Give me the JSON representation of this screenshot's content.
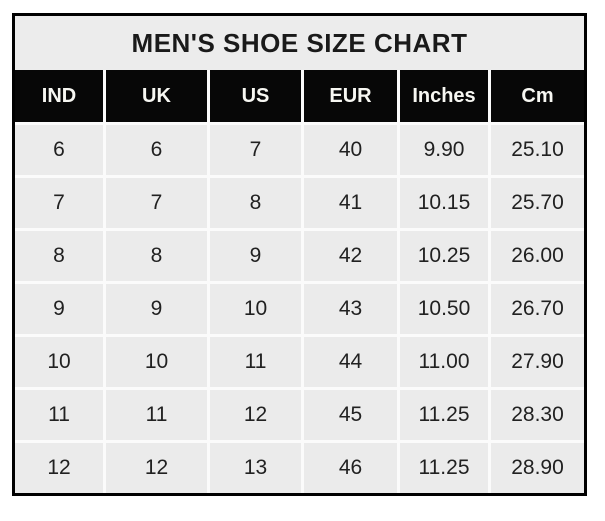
{
  "title": "MEN'S SHOE SIZE CHART",
  "chart_data": {
    "type": "table",
    "title": "MEN'S SHOE SIZE CHART",
    "columns": [
      "IND",
      "UK",
      "US",
      "EUR",
      "Inches",
      "Cm"
    ],
    "rows": [
      [
        "6",
        "6",
        "7",
        "40",
        "9.90",
        "25.10"
      ],
      [
        "7",
        "7",
        "8",
        "41",
        "10.15",
        "25.70"
      ],
      [
        "8",
        "8",
        "9",
        "42",
        "10.25",
        "26.00"
      ],
      [
        "9",
        "9",
        "10",
        "43",
        "10.50",
        "26.70"
      ],
      [
        "10",
        "10",
        "11",
        "44",
        "11.00",
        "27.90"
      ],
      [
        "11",
        "11",
        "12",
        "45",
        "11.25",
        "28.30"
      ],
      [
        "12",
        "12",
        "13",
        "46",
        "11.25",
        "28.90"
      ]
    ]
  },
  "colors": {
    "border": "#000000",
    "title_bg": "#ececec",
    "header_bg": "#070707",
    "header_text": "#f7f7f2",
    "cell_bg": "#ebebeb",
    "grid_line": "#fbfbfb",
    "body_text": "#212121"
  }
}
